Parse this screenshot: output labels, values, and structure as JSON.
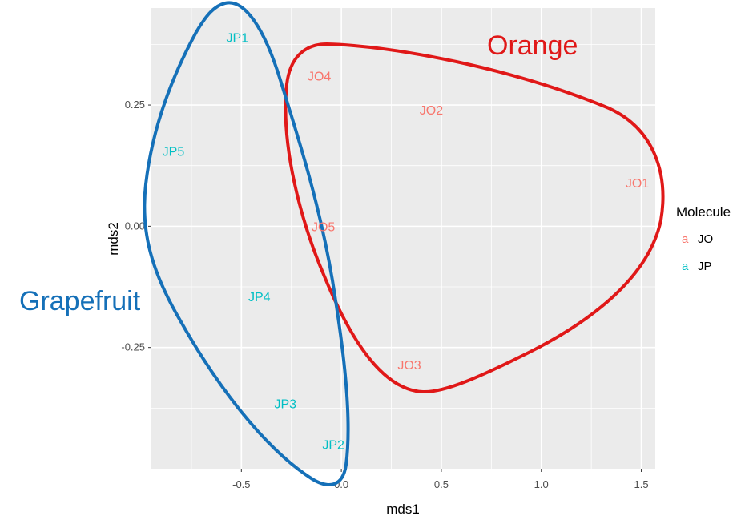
{
  "chart_data": {
    "type": "scatter",
    "xlabel": "mds1",
    "ylabel": "mds2",
    "xlim": [
      -0.95,
      1.57
    ],
    "ylim": [
      -0.5,
      0.45
    ],
    "x_ticks": [
      -0.5,
      0.0,
      0.5,
      1.0,
      1.5
    ],
    "x_tick_labels": [
      "-0.5",
      "0.0",
      "0.5",
      "1.0",
      "1.5"
    ],
    "y_ticks": [
      -0.25,
      0.0,
      0.25
    ],
    "y_tick_labels": [
      "-0.25",
      "0.00",
      "0.25"
    ],
    "grid": true,
    "legend": {
      "title": "Molecule",
      "position": "right",
      "key_glyph": "a",
      "entries": [
        {
          "label": "JO",
          "color": "#F8766D"
        },
        {
          "label": "JP",
          "color": "#00BFC4"
        }
      ]
    },
    "series": [
      {
        "name": "JO",
        "color": "#F8766D",
        "points": [
          {
            "label": "JO1",
            "x": 1.48,
            "y": 0.09
          },
          {
            "label": "JO2",
            "x": 0.45,
            "y": 0.24
          },
          {
            "label": "JO3",
            "x": 0.34,
            "y": -0.285
          },
          {
            "label": "JO4",
            "x": -0.11,
            "y": 0.31
          },
          {
            "label": "JO5",
            "x": -0.09,
            "y": 0.0
          }
        ]
      },
      {
        "name": "JP",
        "color": "#00BFC4",
        "points": [
          {
            "label": "JP1",
            "x": -0.52,
            "y": 0.39
          },
          {
            "label": "JP2",
            "x": -0.04,
            "y": -0.45
          },
          {
            "label": "JP3",
            "x": -0.28,
            "y": -0.365
          },
          {
            "label": "JP4",
            "x": -0.41,
            "y": -0.145
          },
          {
            "label": "JP5",
            "x": -0.84,
            "y": 0.155
          }
        ]
      }
    ],
    "annotations": [
      {
        "text": "Orange",
        "color": "#E01818"
      },
      {
        "text": "Grapefruit",
        "color": "#1570B8"
      }
    ]
  }
}
